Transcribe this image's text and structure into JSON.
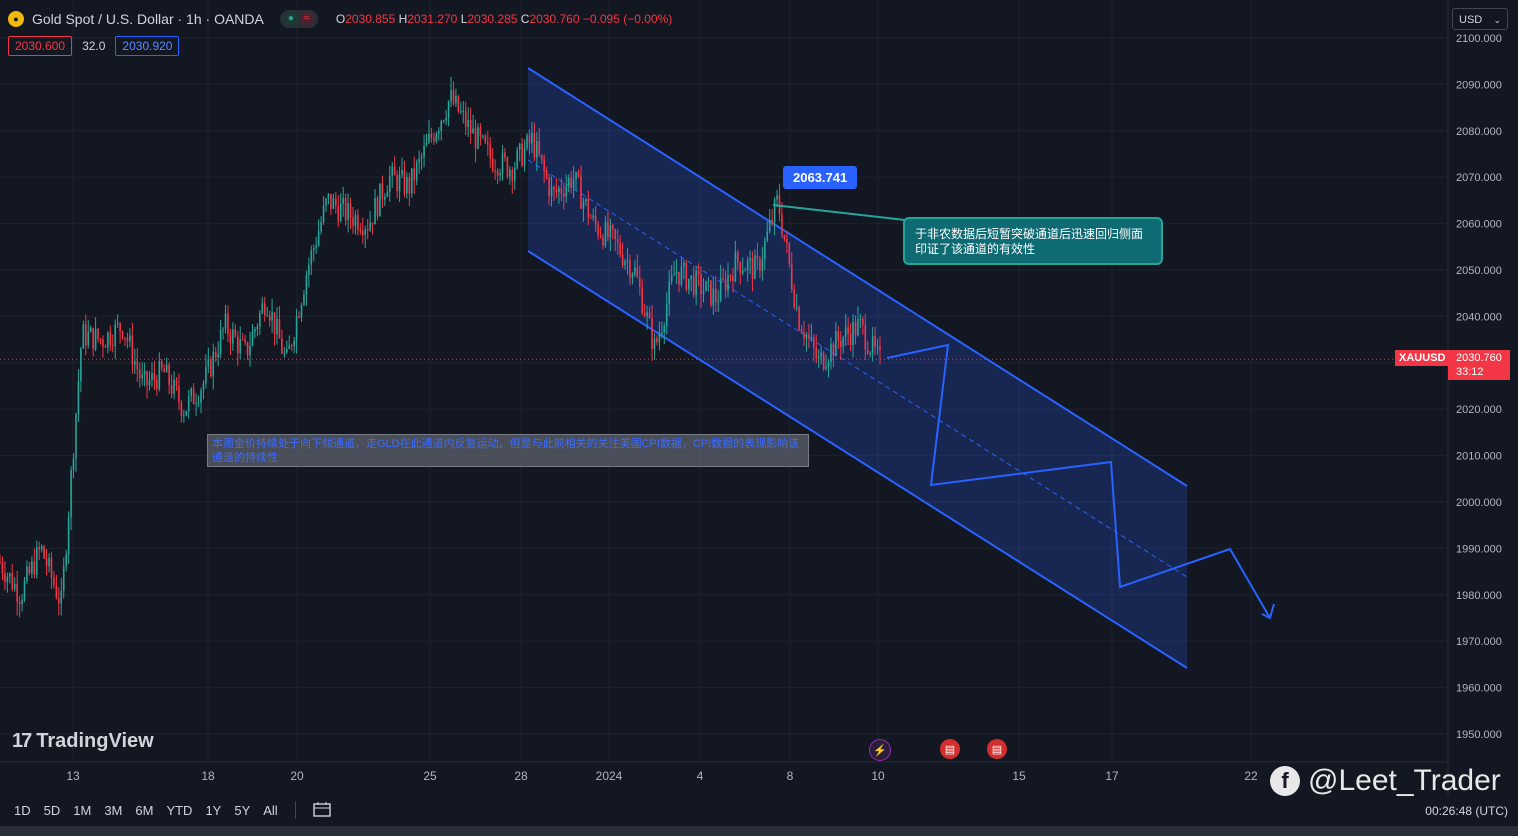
{
  "header": {
    "symbol_title": "Gold Spot / U.S. Dollar · 1h · OANDA",
    "symbol_icon": "gold-coin-icon",
    "ohlc": {
      "o_label": "O",
      "o": "2030.855",
      "h_label": "H",
      "h": "2031.270",
      "l_label": "L",
      "l": "2030.285",
      "c_label": "C",
      "c": "2030.760",
      "change": "−0.095 (−0.00%)"
    },
    "sell_price": "2030.600",
    "spread": "32.0",
    "buy_price": "2030.920",
    "currency": "USD"
  },
  "chart_data": {
    "type": "candlestick",
    "symbol_tag": "XAUUSD",
    "last_price": "2030.760",
    "countdown": "33:12",
    "y_ticks": [
      "2100.000",
      "2090.000",
      "2080.000",
      "2070.000",
      "2060.000",
      "2050.000",
      "2040.000",
      "2030.000",
      "2020.000",
      "2010.000",
      "2000.000",
      "1990.000",
      "1980.000",
      "1970.000",
      "1960.000",
      "1950.000"
    ],
    "ylim": [
      1945,
      2102
    ],
    "x_ticks": [
      "13",
      "18",
      "20",
      "25",
      "28",
      "2024",
      "4",
      "8",
      "10",
      "15",
      "17",
      "22"
    ],
    "approx_close_path": [
      1987,
      1980,
      1990,
      1978,
      2036,
      2035,
      2038,
      2025,
      2028,
      2020,
      2026,
      2038,
      2032,
      2044,
      2030,
      2050,
      2065,
      2062,
      2060,
      2070,
      2068,
      2078,
      2087,
      2080,
      2074,
      2072,
      2078,
      2066,
      2070,
      2060,
      2056,
      2050,
      2033,
      2050,
      2047,
      2044,
      2052,
      2050,
      2065,
      2040,
      2030,
      2035,
      2038,
      2030
    ],
    "highlight_price": "2063.741",
    "annotation_cn": "于非农数据后短暂突破通道后迅速回归侧面印证了该通道的有效性",
    "note_text": "本周金价持续处于向下倾通道，走GLD在此通道内反复运动。但是与此前相关的关注美国CPI数据，CPI数据的表现影响该通道的持续性"
  },
  "events": [
    "lightning-icon",
    "us-flag-icon",
    "us-flag-icon"
  ],
  "timeframes": [
    "1D",
    "5D",
    "1M",
    "3M",
    "6M",
    "YTD",
    "1Y",
    "5Y",
    "All"
  ],
  "date_range_icon": "calendar-icon",
  "clock": "00:26:48 (UTC)",
  "branding": {
    "tradingview": "TradingView",
    "watermark": "@Leet_Trader",
    "watermark_icon": "facebook-icon"
  }
}
